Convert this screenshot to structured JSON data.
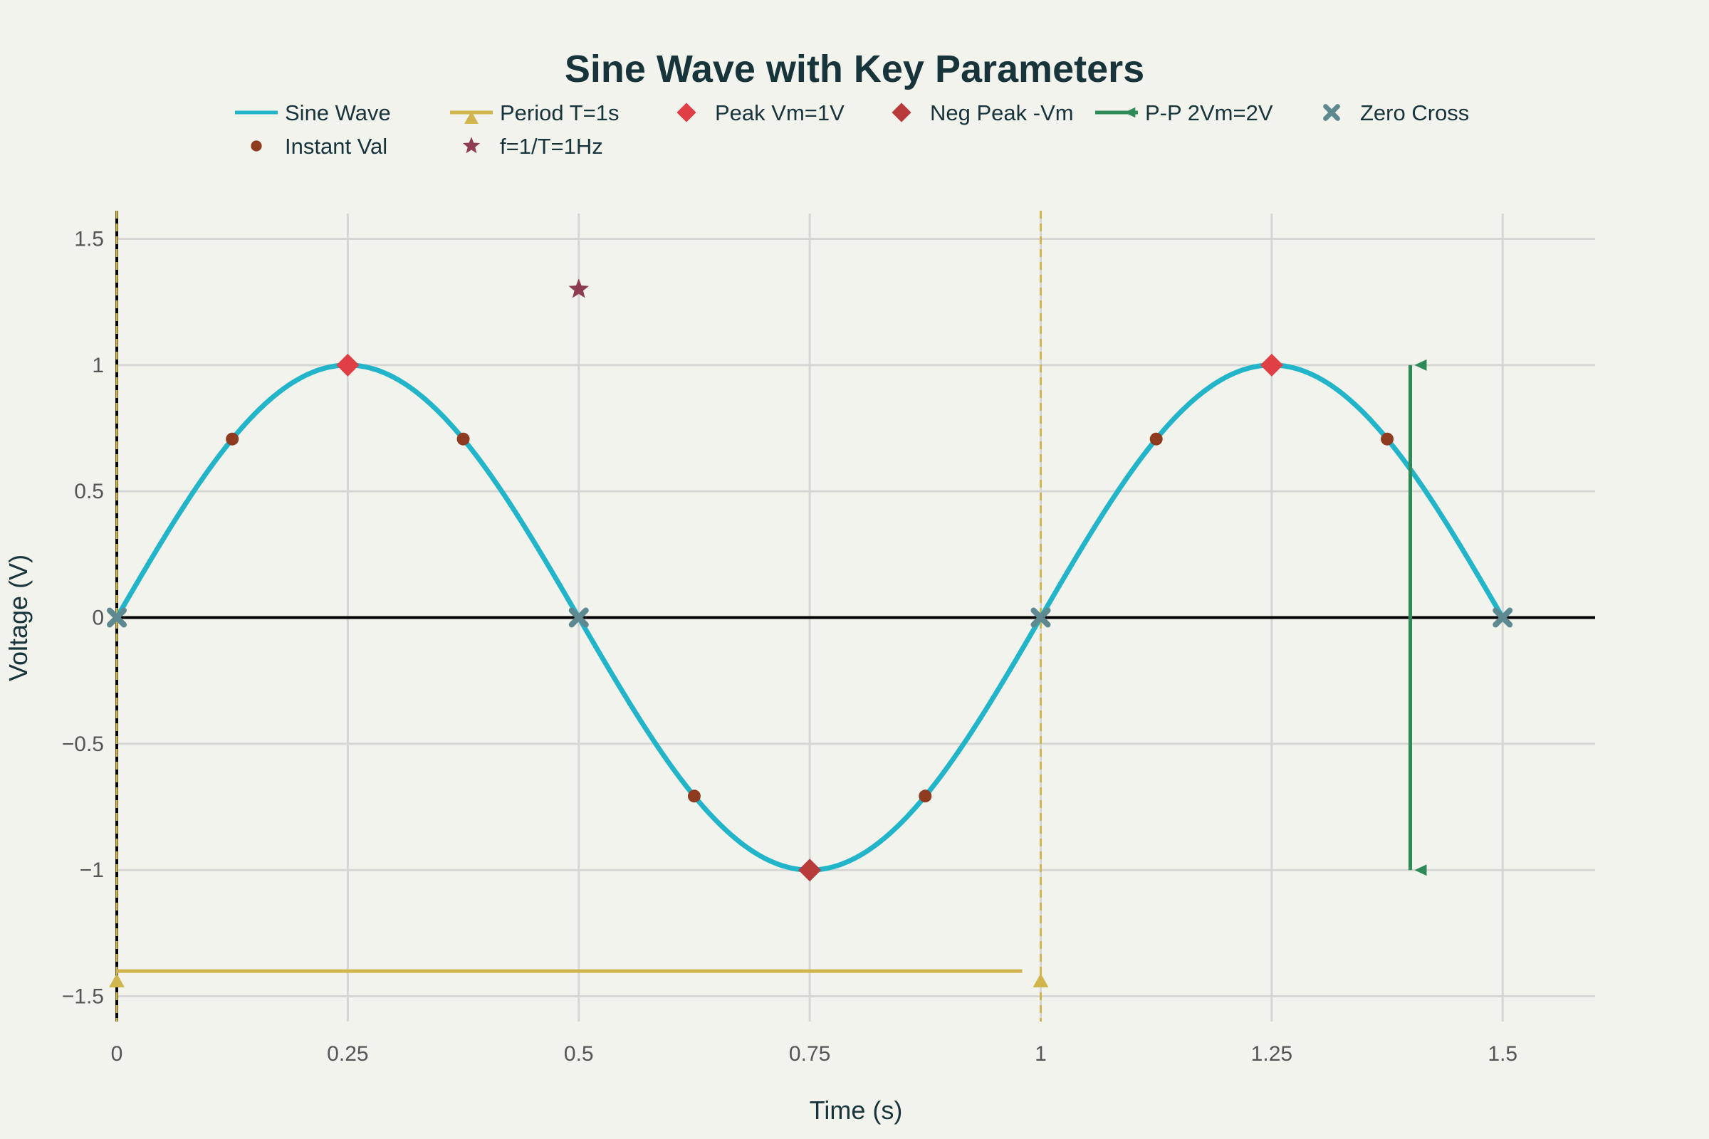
{
  "chart_data": {
    "type": "line",
    "title": "Sine Wave with Key Parameters",
    "xlabel": "Time (s)",
    "ylabel": "Voltage (V)",
    "xlim": [
      0,
      1.6
    ],
    "ylim": [
      -1.6,
      1.6
    ],
    "x_ticks": [
      0,
      0.25,
      0.5,
      0.75,
      1,
      1.25,
      1.5
    ],
    "x_tick_labels": [
      "0",
      "0.25",
      "0.5",
      "0.75",
      "1",
      "1.25",
      "1.5"
    ],
    "y_ticks": [
      1.5,
      1,
      0.5,
      0,
      -0.5,
      -1,
      -1.5
    ],
    "y_tick_labels": [
      "1.5",
      "1",
      "0.5",
      "0",
      "−0.5",
      "−1",
      "−1.5"
    ],
    "grid": true,
    "legend_position": "top",
    "series": [
      {
        "name": "Sine Wave",
        "kind": "line",
        "function": "sin(2*pi*t)",
        "t_range": [
          0,
          1.5
        ],
        "color": "#22b5c9"
      },
      {
        "name": "Period T=1s",
        "kind": "line+triangle-up",
        "x": [
          0,
          0.98
        ],
        "y": [
          -1.4,
          -1.4
        ],
        "markers": [
          {
            "x": 0,
            "y": -1.44
          },
          {
            "x": 1,
            "y": -1.44
          }
        ],
        "vlines": [
          0,
          1
        ],
        "color": "#d0b54c"
      },
      {
        "name": "Peak Vm=1V",
        "kind": "diamond",
        "x": [
          0.25,
          1.25
        ],
        "y": [
          1,
          1
        ],
        "color": "#df3f45"
      },
      {
        "name": "Neg Peak -Vm",
        "kind": "diamond",
        "x": [
          0.75
        ],
        "y": [
          -1
        ],
        "color": "#b83a3b"
      },
      {
        "name": "P-P 2Vm=2V",
        "kind": "line+triangle-left",
        "x": [
          1.4,
          1.4
        ],
        "y": [
          1,
          -1
        ],
        "color": "#2e8b57"
      },
      {
        "name": "Zero Cross",
        "kind": "x",
        "x": [
          0,
          0.5,
          1,
          1.5
        ],
        "y": [
          0,
          0,
          0,
          0
        ],
        "color": "#5e8990"
      },
      {
        "name": "Instant Val",
        "kind": "circle",
        "x": [
          0.125,
          0.375,
          0.625,
          0.875,
          1.125,
          1.375
        ],
        "y": [
          0.707,
          0.707,
          -0.707,
          -0.707,
          0.707,
          0.707
        ],
        "color": "#8f3b1f"
      },
      {
        "name": "f=1/T=1Hz",
        "kind": "star",
        "x": [
          0.5
        ],
        "y": [
          1.3
        ],
        "color": "#8e3c52"
      }
    ]
  }
}
